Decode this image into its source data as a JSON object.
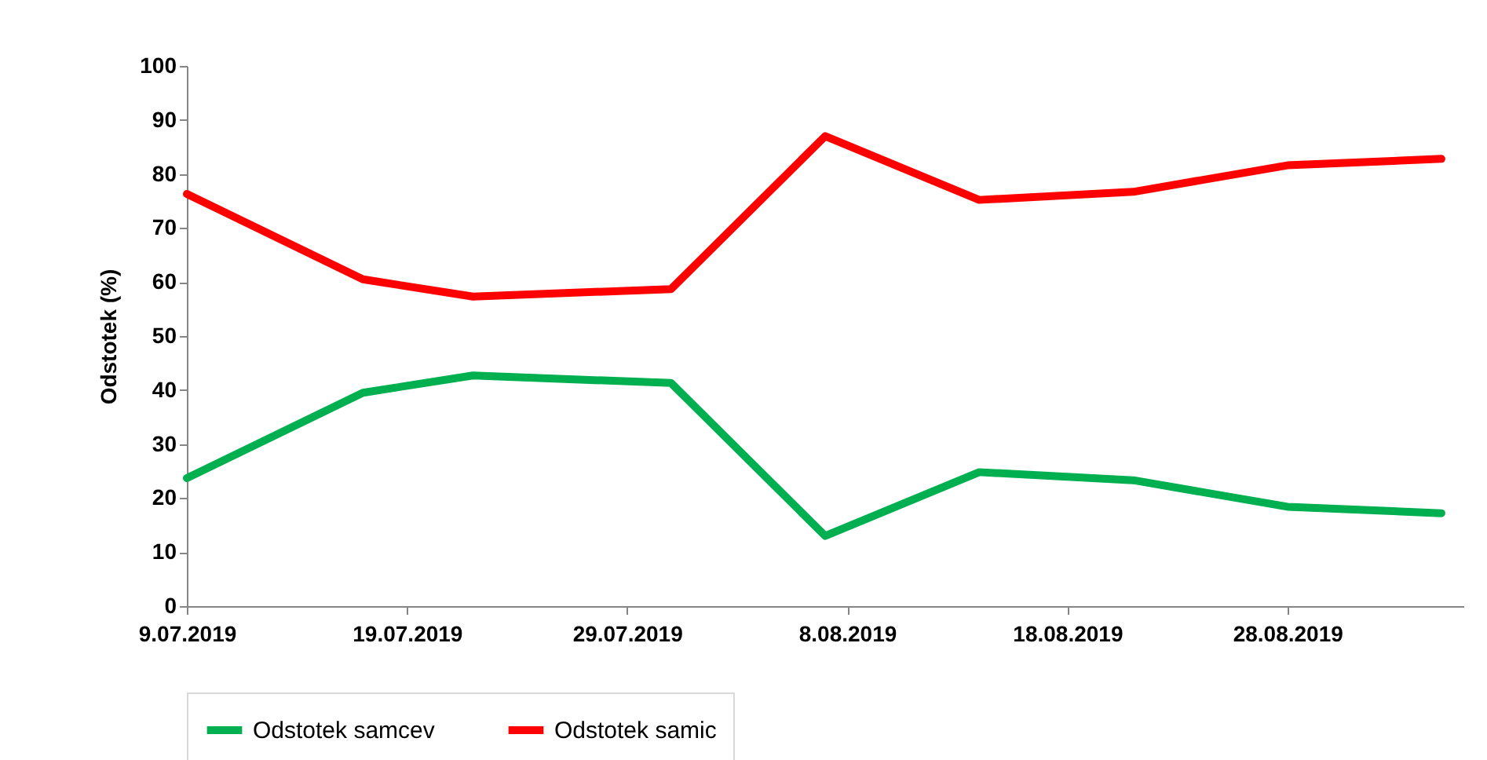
{
  "chart_data": {
    "type": "line",
    "ylabel": "Odstotek (%)",
    "x": [
      "2019-07-09",
      "2019-07-17",
      "2019-07-22",
      "2019-07-31",
      "2019-08-07",
      "2019-08-14",
      "2019-08-21",
      "2019-08-28",
      "2019-09-04"
    ],
    "series": [
      {
        "name": "Odstotek samcev",
        "color": "#00b050",
        "values": [
          23.7,
          39.5,
          42.7,
          41.3,
          13.0,
          24.8,
          23.3,
          18.4,
          17.2
        ]
      },
      {
        "name": "Odstotek samic",
        "color": "#ff0000",
        "values": [
          76.3,
          60.5,
          57.3,
          58.7,
          87.0,
          75.2,
          76.7,
          81.6,
          82.8
        ]
      }
    ],
    "xlim": [
      "2019-07-09",
      "2019-09-05"
    ],
    "xticks": [
      {
        "value": "2019-07-09",
        "label": "9.07.2019"
      },
      {
        "value": "2019-07-19",
        "label": "19.07.2019"
      },
      {
        "value": "2019-07-29",
        "label": "29.07.2019"
      },
      {
        "value": "2019-08-08",
        "label": "8.08.2019"
      },
      {
        "value": "2019-08-18",
        "label": "18.08.2019"
      },
      {
        "value": "2019-08-28",
        "label": "28.08.2019"
      }
    ],
    "ylim": [
      0,
      100
    ],
    "yticks": [
      0,
      10,
      20,
      30,
      40,
      50,
      60,
      70,
      80,
      90,
      100
    ],
    "grid": false,
    "legend": "bottom",
    "marker": "none",
    "line_style": "solid"
  }
}
